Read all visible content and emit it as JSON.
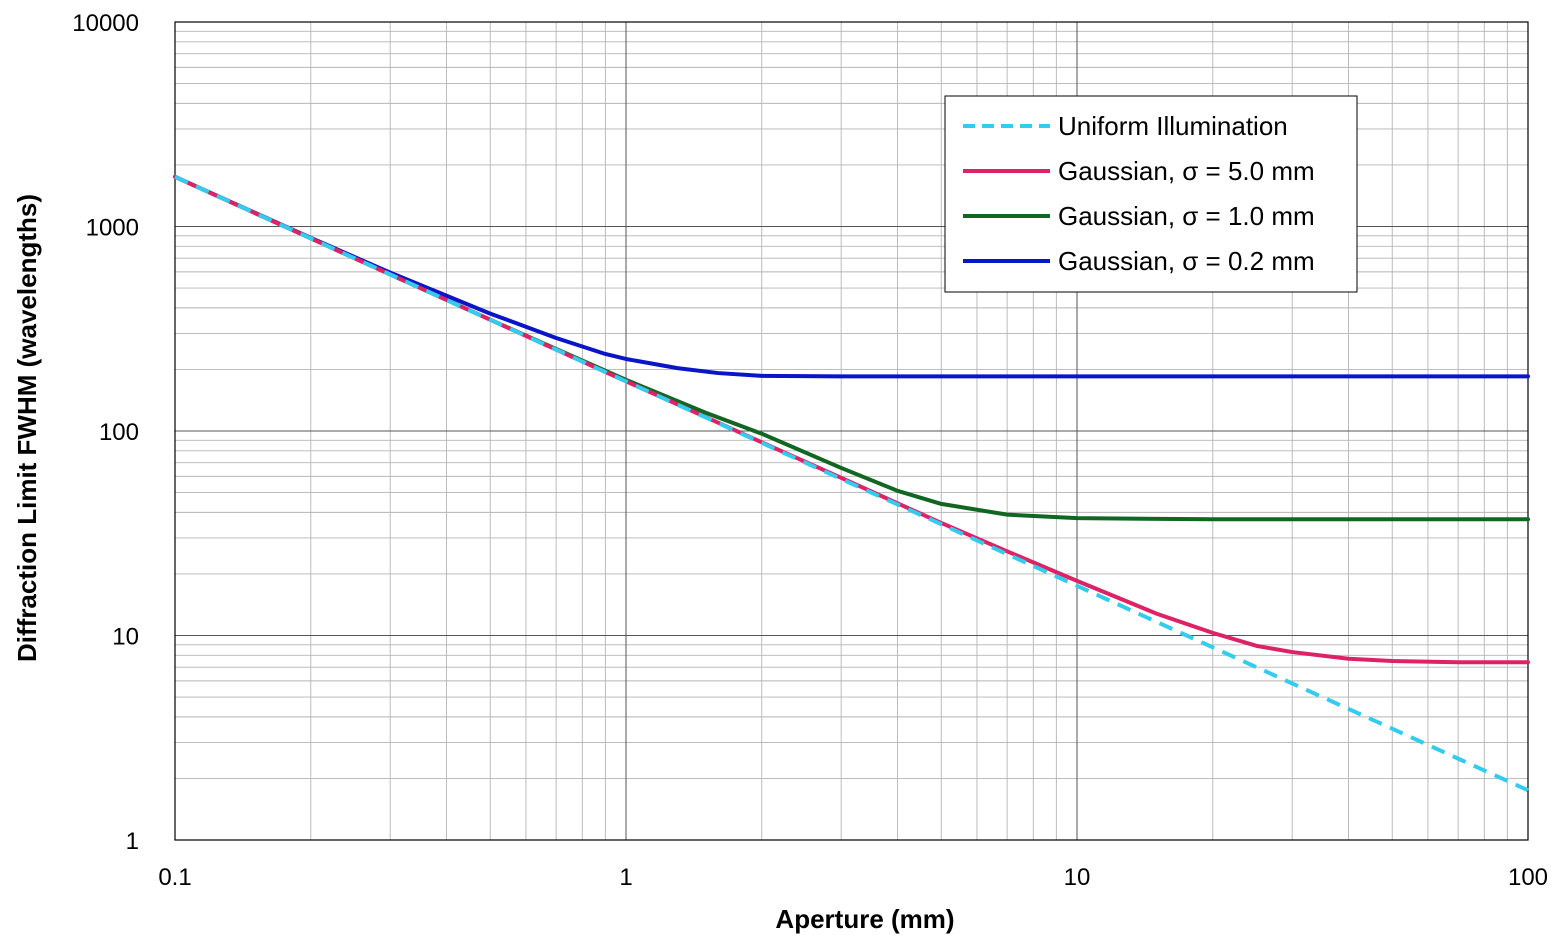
{
  "chart_data": {
    "type": "line",
    "xlabel": "Aperture (mm)",
    "ylabel": "Diffraction Limit FWHM (wavelengths)",
    "x_scale": "log",
    "y_scale": "log",
    "xlim": [
      0.1,
      100
    ],
    "ylim": [
      1,
      10000
    ],
    "x_ticks": [
      "0.1",
      "1",
      "10",
      "100"
    ],
    "y_ticks": [
      "1",
      "10",
      "100",
      "1000",
      "10000"
    ],
    "grid": true,
    "legend_position": "top-right",
    "series": [
      {
        "name": "Uniform Illumination",
        "color": "#33ccee",
        "style": "dashed",
        "x": [
          0.1,
          0.2,
          0.3,
          0.5,
          0.7,
          1,
          2,
          3,
          5,
          7,
          10,
          20,
          30,
          50,
          70,
          100
        ],
        "y": [
          1750,
          875,
          583,
          350,
          250,
          175,
          87.5,
          58.3,
          35,
          25,
          17.5,
          8.75,
          5.83,
          3.5,
          2.5,
          1.75
        ]
      },
      {
        "name": "Gaussian, σ = 5.0 mm",
        "color": "#dd2266",
        "style": "solid",
        "x": [
          0.1,
          0.2,
          0.3,
          0.5,
          0.7,
          1,
          2,
          3,
          5,
          7,
          10,
          15,
          20,
          25,
          30,
          40,
          50,
          70,
          100
        ],
        "y": [
          1750,
          875,
          583,
          350,
          250,
          175,
          88,
          59,
          35.5,
          25.8,
          18.5,
          12.8,
          10.3,
          8.9,
          8.3,
          7.7,
          7.5,
          7.4,
          7.4
        ]
      },
      {
        "name": "Gaussian, σ = 1.0 mm",
        "color": "#116622",
        "style": "solid",
        "x": [
          0.1,
          0.2,
          0.3,
          0.5,
          0.7,
          1,
          1.5,
          2,
          3,
          4,
          5,
          7,
          10,
          20,
          50,
          100
        ],
        "y": [
          1750,
          875,
          583,
          350,
          252,
          178,
          123,
          97,
          66,
          51,
          44,
          39,
          37.5,
          37,
          37,
          37
        ]
      },
      {
        "name": "Gaussian, σ = 0.2 mm",
        "color": "#0a14c8",
        "style": "solid",
        "x": [
          0.1,
          0.2,
          0.3,
          0.5,
          0.7,
          0.9,
          1,
          1.3,
          1.6,
          2,
          3,
          5,
          10,
          20,
          50,
          100
        ],
        "y": [
          1750,
          880,
          595,
          375,
          285,
          238,
          225,
          203,
          192,
          186,
          185,
          185,
          185,
          185,
          185,
          185
        ]
      }
    ]
  }
}
